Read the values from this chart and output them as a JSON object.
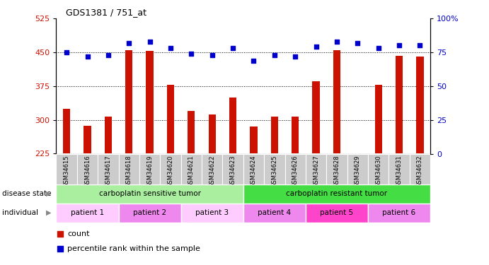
{
  "title": "GDS1381 / 751_at",
  "samples": [
    "GSM34615",
    "GSM34616",
    "GSM34617",
    "GSM34618",
    "GSM34619",
    "GSM34620",
    "GSM34621",
    "GSM34622",
    "GSM34623",
    "GSM34624",
    "GSM34625",
    "GSM34626",
    "GSM34627",
    "GSM34628",
    "GSM34629",
    "GSM34630",
    "GSM34631",
    "GSM34632"
  ],
  "counts": [
    325,
    287,
    307,
    455,
    453,
    378,
    320,
    312,
    350,
    285,
    307,
    308,
    385,
    455,
    225,
    378,
    443,
    440
  ],
  "percentiles": [
    75,
    72,
    73,
    82,
    83,
    78,
    74,
    73,
    78,
    69,
    73,
    72,
    79,
    83,
    82,
    78,
    80,
    80
  ],
  "ylim_left": [
    225,
    525
  ],
  "ylim_right": [
    0,
    100
  ],
  "yticks_left": [
    225,
    300,
    375,
    450,
    525
  ],
  "yticks_right": [
    0,
    25,
    50,
    75,
    100
  ],
  "hlines": [
    300,
    375,
    450
  ],
  "bar_color": "#cc1100",
  "dot_color": "#0000cc",
  "disease_state_groups": [
    {
      "label": "carboplatin sensitive tumor",
      "start": 0,
      "end": 9,
      "color": "#aaeea0"
    },
    {
      "label": "carboplatin resistant tumor",
      "start": 9,
      "end": 18,
      "color": "#44dd44"
    }
  ],
  "individual_groups": [
    {
      "label": "patient 1",
      "start": 0,
      "end": 3,
      "color": "#ffccff"
    },
    {
      "label": "patient 2",
      "start": 3,
      "end": 6,
      "color": "#ee88ee"
    },
    {
      "label": "patient 3",
      "start": 6,
      "end": 9,
      "color": "#ffccff"
    },
    {
      "label": "patient 4",
      "start": 9,
      "end": 12,
      "color": "#ee88ee"
    },
    {
      "label": "patient 5",
      "start": 12,
      "end": 15,
      "color": "#ff44cc"
    },
    {
      "label": "patient 6",
      "start": 15,
      "end": 18,
      "color": "#ee88ee"
    }
  ],
  "legend_items": [
    {
      "label": "count",
      "color": "#cc1100"
    },
    {
      "label": "percentile rank within the sample",
      "color": "#0000cc"
    }
  ]
}
